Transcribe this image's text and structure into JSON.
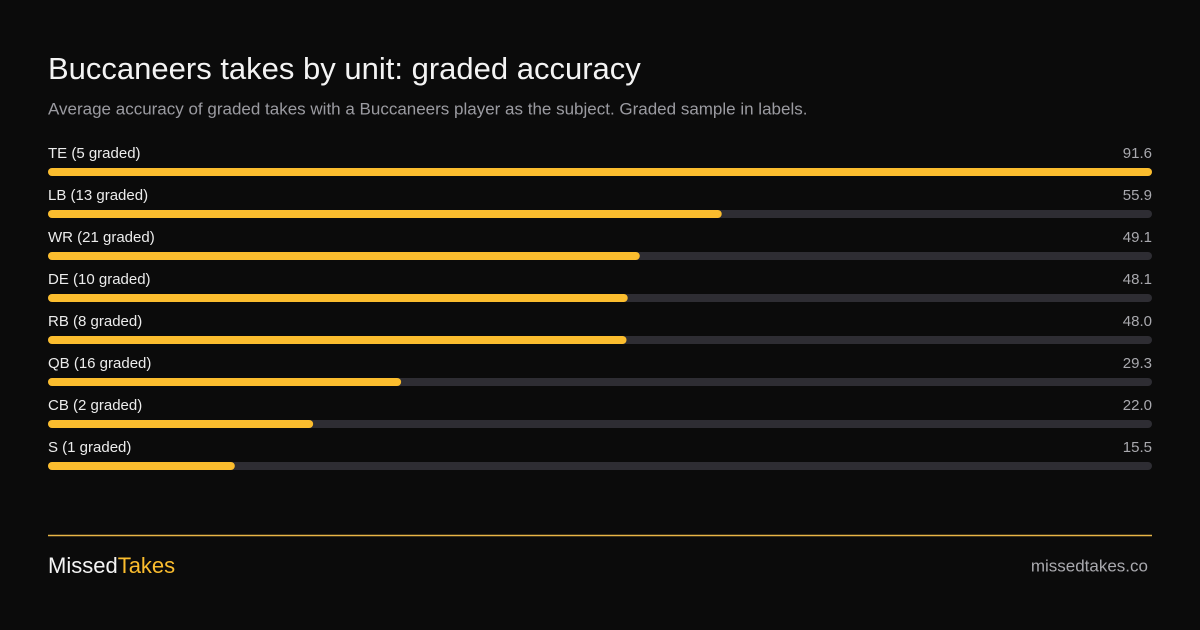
{
  "chart_data": {
    "type": "bar",
    "orientation": "horizontal",
    "title": "Buccaneers takes by unit: graded accuracy",
    "subtitle": "Average accuracy of graded takes with a Buccaneers player as the subject. Graded sample in labels.",
    "categories": [
      "TE (5 graded)",
      "LB (13 graded)",
      "WR (21 graded)",
      "DE (10 graded)",
      "RB (8 graded)",
      "QB (16 graded)",
      "CB (2 graded)",
      "S (1 graded)"
    ],
    "values": [
      91.6,
      55.9,
      49.1,
      48.1,
      48.0,
      29.3,
      22.0,
      15.5
    ],
    "value_labels": [
      "91.6",
      "55.9",
      "49.1",
      "48.1",
      "48.0",
      "29.3",
      "22.0",
      "15.5"
    ],
    "color": "#fbbd2e",
    "track_color": "#2e2d33"
  },
  "footer": {
    "brand_first": "Missed",
    "brand_second": "Takes",
    "url": "missedtakes.co"
  }
}
